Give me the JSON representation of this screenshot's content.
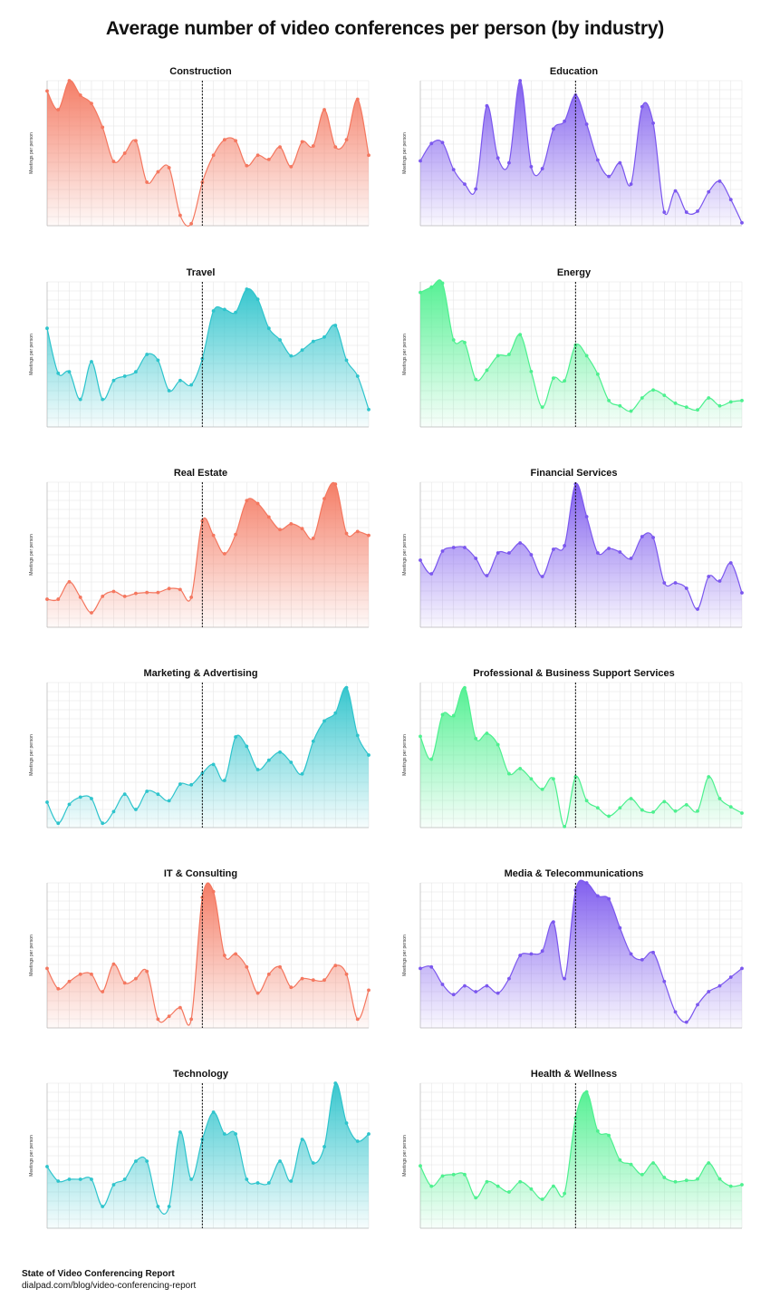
{
  "title": "Average number of video conferences per person (by industry)",
  "footer": {
    "title": "State of Video Conferencing Report",
    "url": "dialpad.com/blog/video-conferencing-report"
  },
  "colors": {
    "red": "#f4775f",
    "purple": "#7b57ee",
    "teal": "#2ec4cc",
    "green": "#4df08f"
  },
  "chart_data": [
    {
      "type": "area",
      "title": "Construction",
      "ylabel": "Meetings per person",
      "color": "#f4775f",
      "ylim": [
        3,
        17
      ],
      "divider_index": 14,
      "values": [
        16,
        14.2,
        17,
        15.6,
        14.8,
        12.5,
        9.2,
        10,
        11.2,
        7.2,
        8.2,
        8.6,
        4,
        3.2,
        7.2,
        9.8,
        11.3,
        11.2,
        8.8,
        9.8,
        9.4,
        10.6,
        8.7,
        11.1,
        10.7,
        14.2,
        10.6,
        11.3,
        15.2,
        9.8
      ]
    },
    {
      "type": "area",
      "title": "Education",
      "ylabel": "Meetings per person",
      "color": "#7b57ee",
      "ylim": [
        2,
        17
      ],
      "divider_index": 14,
      "values": [
        8.7,
        10.5,
        10.6,
        7.8,
        6.3,
        5.8,
        14.4,
        9,
        8.5,
        17,
        8.1,
        7.9,
        12,
        12.8,
        15.5,
        12.5,
        8.8,
        7.1,
        8.5,
        6.3,
        14.3,
        12.6,
        3.4,
        5.6,
        3.4,
        3.5,
        5.5,
        6.6,
        4.7,
        2.3
      ]
    },
    {
      "type": "area",
      "title": "Travel",
      "ylabel": "Meetings per person",
      "color": "#2ec4cc",
      "ylim": [
        6,
        16
      ],
      "divider_index": 14,
      "values": [
        12.8,
        9.7,
        9.8,
        7.9,
        10.5,
        7.9,
        9.2,
        9.5,
        9.8,
        11,
        10.6,
        8.5,
        9.2,
        8.9,
        10.7,
        14,
        14.1,
        13.9,
        15.5,
        14.8,
        12.8,
        12,
        10.9,
        11.3,
        11.9,
        12.2,
        13,
        10.6,
        9.5,
        7.2
      ]
    },
    {
      "type": "area",
      "title": "Energy",
      "ylabel": "Meetings per person",
      "color": "#4df08f",
      "ylim": [
        2,
        13
      ],
      "divider_index": 14,
      "values": [
        12.2,
        12.6,
        12.9,
        8.6,
        8.4,
        5.6,
        6.3,
        7.4,
        7.5,
        9,
        6.2,
        3.5,
        5.7,
        5.5,
        8.2,
        7.4,
        6,
        4,
        3.6,
        3.2,
        4.2,
        4.8,
        4.4,
        3.8,
        3.5,
        3.3,
        4.2,
        3.6,
        3.9,
        4
      ]
    },
    {
      "type": "area",
      "title": "Real Estate",
      "ylabel": "Meetings per person",
      "color": "#f4775f",
      "ylim": [
        0,
        15
      ],
      "divider_index": 14,
      "values": [
        2.9,
        2.9,
        4.7,
        3.1,
        1.5,
        3.2,
        3.7,
        3.2,
        3.5,
        3.6,
        3.6,
        4,
        3.9,
        3.1,
        11,
        9.5,
        7.6,
        9.6,
        13.1,
        12.8,
        11.4,
        10.1,
        10.7,
        10.2,
        9.2,
        13.3,
        14.8,
        9.7,
        9.9,
        9.5
      ]
    },
    {
      "type": "area",
      "title": "Financial Services",
      "ylabel": "Meetings per person",
      "color": "#7b57ee",
      "ylim": [
        0,
        16
      ],
      "divider_index": 14,
      "values": [
        7.4,
        5.9,
        8.4,
        8.8,
        8.8,
        7.6,
        5.7,
        8.2,
        8.2,
        9.3,
        8,
        5.6,
        8.6,
        9,
        15.8,
        12.2,
        8.2,
        8.7,
        8.3,
        7.6,
        10,
        9.9,
        4.9,
        4.9,
        4.3,
        2,
        5.6,
        5.1,
        7.1,
        3.8
      ]
    },
    {
      "type": "area",
      "title": "Marketing & Advertising",
      "ylabel": "Meetings per person",
      "color": "#2ec4cc",
      "ylim": [
        1.6,
        3.6
      ],
      "divider_index": 14,
      "values": [
        1.95,
        1.66,
        1.92,
        2.02,
        2,
        1.66,
        1.82,
        2.06,
        1.85,
        2.1,
        2.06,
        1.97,
        2.2,
        2.19,
        2.35,
        2.47,
        2.25,
        2.85,
        2.72,
        2.4,
        2.53,
        2.64,
        2.5,
        2.34,
        2.79,
        3.07,
        3.18,
        3.53,
        2.87,
        2.6
      ]
    },
    {
      "type": "area",
      "title": "Professional & Business Support Services",
      "ylabel": "Meetings per person",
      "color": "#4df08f",
      "ylim": [
        2,
        16
      ],
      "divider_index": 14,
      "values": [
        10.8,
        8.6,
        12.9,
        12.8,
        15.5,
        10.6,
        11.1,
        10,
        7.2,
        7.7,
        6.7,
        5.7,
        6.7,
        2.1,
        6.9,
        4.6,
        3.9,
        3.1,
        3.9,
        4.8,
        3.7,
        3.5,
        4.5,
        3.6,
        4.2,
        3.6,
        6.9,
        4.8,
        4,
        3.4
      ]
    },
    {
      "type": "area",
      "title": "IT & Consulting",
      "ylabel": "Meetings per person",
      "color": "#f4775f",
      "ylim": [
        2,
        12
      ],
      "divider_index": 14,
      "values": [
        6.1,
        4.7,
        5.2,
        5.7,
        5.7,
        4.5,
        6.4,
        5.1,
        5.4,
        5.9,
        2.6,
        2.8,
        3.4,
        2.6,
        11,
        11.4,
        7,
        7.1,
        6.2,
        4.4,
        5.7,
        6.2,
        4.8,
        5.4,
        5.3,
        5.3,
        6.3,
        5.7,
        2.6,
        4.6
      ]
    },
    {
      "type": "area",
      "title": "Media & Telecommunications",
      "ylabel": "Meetings per person",
      "color": "#7b57ee",
      "ylim": [
        2,
        12
      ],
      "divider_index": 14,
      "values": [
        6.1,
        6.2,
        5,
        4.3,
        4.9,
        4.5,
        4.9,
        4.4,
        5.4,
        7,
        7.1,
        7.3,
        9.3,
        5.4,
        11.5,
        12,
        11.1,
        10.9,
        8.9,
        7.1,
        6.7,
        7.2,
        5.2,
        3.1,
        2.4,
        3.6,
        4.5,
        4.9,
        5.5,
        6.1
      ]
    },
    {
      "type": "area",
      "title": "Technology",
      "ylabel": "Meetings per person",
      "color": "#2ec4cc",
      "ylim": [
        7,
        15
      ],
      "divider_index": 14,
      "values": [
        10.4,
        9.6,
        9.7,
        9.7,
        9.7,
        8.2,
        9.4,
        9.7,
        10.7,
        10.7,
        8.2,
        8.2,
        12.3,
        9.7,
        11.9,
        13.4,
        12.2,
        12.2,
        9.7,
        9.5,
        9.5,
        10.7,
        9.6,
        11.9,
        10.6,
        11.5,
        15,
        12.8,
        11.8,
        12.2
      ]
    },
    {
      "type": "area",
      "title": "Health & Wellness",
      "ylabel": "Meetings per person",
      "color": "#4df08f",
      "ylim": [
        4,
        14
      ],
      "divider_index": 14,
      "values": [
        8.3,
        6.9,
        7.6,
        7.7,
        7.7,
        6.1,
        7.2,
        6.9,
        6.5,
        7.2,
        6.7,
        6,
        6.9,
        6.4,
        11.6,
        13.4,
        10.7,
        10.4,
        8.7,
        8.4,
        7.7,
        8.5,
        7.5,
        7.2,
        7.3,
        7.4,
        8.5,
        7.4,
        6.9,
        7
      ]
    }
  ]
}
